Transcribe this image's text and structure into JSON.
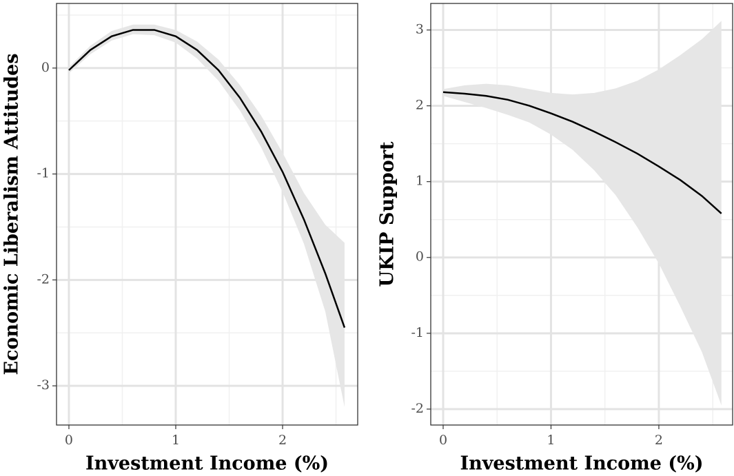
{
  "chart_data": [
    {
      "type": "line",
      "xlabel": "Investment Income (%)",
      "ylabel": "Economic Liberalism Attitudes",
      "x": [
        0,
        0.2,
        0.4,
        0.6,
        0.8,
        1.0,
        1.2,
        1.4,
        1.6,
        1.8,
        2.0,
        2.2,
        2.4,
        2.58
      ],
      "values": [
        -0.02,
        0.17,
        0.3,
        0.36,
        0.36,
        0.3,
        0.17,
        -0.02,
        -0.28,
        -0.6,
        -0.98,
        -1.43,
        -1.94,
        -2.45
      ],
      "lower": [
        -0.05,
        0.13,
        0.26,
        0.32,
        0.31,
        0.24,
        0.09,
        -0.12,
        -0.4,
        -0.75,
        -1.17,
        -1.66,
        -2.3,
        -3.2
      ],
      "upper": [
        0.01,
        0.21,
        0.35,
        0.41,
        0.41,
        0.36,
        0.25,
        0.08,
        -0.16,
        -0.45,
        -0.8,
        -1.18,
        -1.48,
        -1.65
      ],
      "color": "#000000",
      "band_color": "#e6e6e6",
      "xlim": [
        -0.116,
        2.703
      ],
      "ylim": [
        -3.37,
        0.61
      ],
      "xticks": [
        0,
        1,
        2
      ],
      "yticks": [
        0,
        -1,
        -2,
        -3
      ],
      "x_minor_ticks": [
        0.5,
        1.5,
        2.5
      ],
      "y_minor_ticks": [
        0.5,
        -0.5,
        -1.5,
        -2.5
      ],
      "grid": true
    },
    {
      "type": "line",
      "xlabel": "Investment Income (%)",
      "ylabel": "UKIP Support",
      "x": [
        0,
        0.2,
        0.4,
        0.6,
        0.8,
        1.0,
        1.2,
        1.4,
        1.6,
        1.8,
        2.0,
        2.2,
        2.4,
        2.58
      ],
      "values": [
        2.18,
        2.16,
        2.13,
        2.08,
        2.0,
        1.9,
        1.79,
        1.66,
        1.52,
        1.37,
        1.2,
        1.02,
        0.81,
        0.58
      ],
      "lower": [
        2.13,
        2.05,
        1.97,
        1.88,
        1.78,
        1.62,
        1.42,
        1.15,
        0.82,
        0.4,
        -0.08,
        -0.65,
        -1.25,
        -1.95
      ],
      "upper": [
        2.22,
        2.27,
        2.29,
        2.27,
        2.22,
        2.17,
        2.15,
        2.17,
        2.23,
        2.33,
        2.48,
        2.67,
        2.88,
        3.12
      ],
      "color": "#000000",
      "band_color": "#e6e6e6",
      "xlim": [
        -0.115,
        2.684
      ],
      "ylim": [
        -2.21,
        3.35
      ],
      "xticks": [
        0,
        1,
        2
      ],
      "yticks": [
        3,
        2,
        1,
        0,
        -1,
        -2
      ],
      "x_minor_ticks": [
        0.5,
        1.5,
        2.5
      ],
      "y_minor_ticks": [
        2.5,
        1.5,
        0.5,
        -0.5,
        -1.5
      ],
      "grid": true
    }
  ]
}
